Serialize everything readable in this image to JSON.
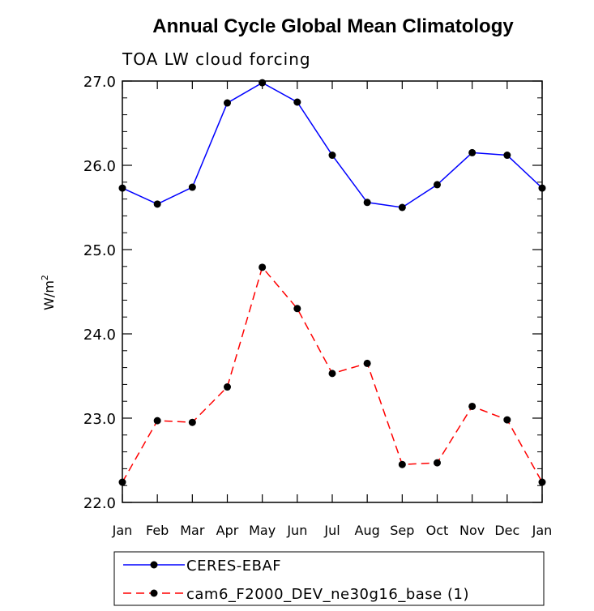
{
  "chart_data": {
    "type": "line",
    "title": "Annual Cycle Global Mean Climatology",
    "subtitle": "TOA LW cloud forcing",
    "ylabel": "W/m",
    "ylabel_sup": "2",
    "xlabel": "",
    "categories": [
      "Jan",
      "Feb",
      "Mar",
      "Apr",
      "May",
      "Jun",
      "Jul",
      "Aug",
      "Sep",
      "Oct",
      "Nov",
      "Dec",
      "Jan"
    ],
    "ylim": [
      22.0,
      27.0
    ],
    "yticks": [
      "22.0",
      "23.0",
      "24.0",
      "25.0",
      "26.0",
      "27.0"
    ],
    "grid": false,
    "legend_position": "bottom",
    "series": [
      {
        "name": "CERES-EBAF",
        "color": "#0000ff",
        "line_style": "solid",
        "marker": "filled-circle",
        "values": [
          25.73,
          25.54,
          25.74,
          26.74,
          26.98,
          26.75,
          26.12,
          25.56,
          25.5,
          25.77,
          26.15,
          26.12,
          25.73
        ]
      },
      {
        "name": "cam6_F2000_DEV_ne30g16_base (1)",
        "color": "#ff0000",
        "line_style": "dashed",
        "marker": "filled-circle",
        "values": [
          22.24,
          22.97,
          22.95,
          23.37,
          24.79,
          24.3,
          23.53,
          23.65,
          22.45,
          22.47,
          23.14,
          22.98,
          22.24
        ]
      }
    ]
  }
}
